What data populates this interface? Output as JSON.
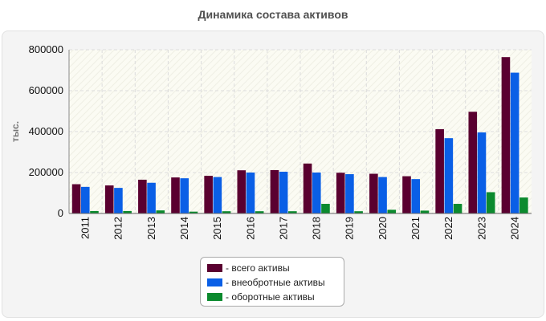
{
  "chart_data": {
    "type": "bar",
    "title": "Динамика состава активов",
    "ylabel": "тыс.",
    "xlabel": "",
    "ylim": [
      0,
      800000
    ],
    "yticks": [
      0,
      200000,
      400000,
      600000,
      800000
    ],
    "categories": [
      "2011",
      "2012",
      "2013",
      "2014",
      "2015",
      "2016",
      "2017",
      "2018",
      "2019",
      "2020",
      "2021",
      "2022",
      "2023",
      "2024"
    ],
    "series": [
      {
        "name": "- всего активы",
        "color": "#5a0030",
        "values": [
          143000,
          137000,
          165000,
          176000,
          184000,
          211000,
          212000,
          244000,
          199000,
          194000,
          182000,
          412000,
          497000,
          764000
        ]
      },
      {
        "name": "- внеобротные активы",
        "color": "#0a5fe6",
        "values": [
          130000,
          125000,
          150000,
          172000,
          178000,
          200000,
          204000,
          200000,
          192000,
          178000,
          168000,
          368000,
          396000,
          688000
        ]
      },
      {
        "name": "- оборотные активы",
        "color": "#0b8a2e",
        "values": [
          12000,
          12000,
          15000,
          9000,
          11000,
          11000,
          11000,
          47000,
          11000,
          18000,
          14000,
          47000,
          104000,
          78000
        ]
      }
    ],
    "grid": true,
    "legend": "bottom-center"
  }
}
